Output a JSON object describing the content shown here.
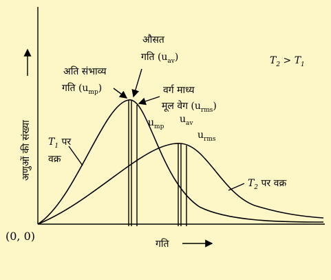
{
  "axes": {
    "y_label": "अणुओं की संख्या",
    "origin": "(0, 0)",
    "x_label": "गति"
  },
  "labels": {
    "avg": {
      "line1": "औसत",
      "line2": "गति (u",
      "sub": "av",
      "close": ")"
    },
    "mp": {
      "line1": "अति संभाव्य",
      "line2": "गति (u",
      "sub": "mp",
      "close": ")"
    },
    "rms": {
      "line1": "वर्ग माध्य",
      "line2": "मूल वेग (u",
      "sub": "rms",
      "close": ")"
    },
    "compare": {
      "t2": "T",
      "sub2": "2",
      "gt": " > T",
      "sub1": "1"
    },
    "t1_curve": {
      "t": "T",
      "sub": "1",
      "text": " पर",
      "line2": "वक्र"
    },
    "t2_speeds": [
      {
        "u": "u",
        "sub": "mp"
      },
      {
        "u": "u",
        "sub": "av"
      },
      {
        "u": "u",
        "sub": "rms"
      }
    ],
    "t2_curve": {
      "t": "T",
      "sub": "2",
      "text": " पर वक्र"
    }
  }
}
